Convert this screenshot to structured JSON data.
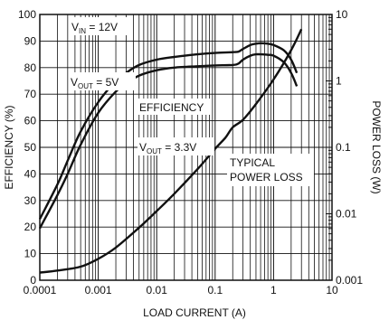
{
  "chart_data": {
    "type": "line",
    "xlabel": "LOAD CURRENT (A)",
    "ylabel": "EFFICIENCY (%)",
    "y2label": "POWER LOSS (W)",
    "x_scale": "log",
    "xlim": [
      0.0001,
      10
    ],
    "ylim": [
      0,
      100
    ],
    "y2_scale": "log",
    "y2lim": [
      0.001,
      10
    ],
    "grid": true,
    "x_ticks": [
      "0.0001",
      "0.001",
      "0.01",
      "0.1",
      "1",
      "10"
    ],
    "y_ticks": [
      "0",
      "10",
      "20",
      "30",
      "40",
      "50",
      "60",
      "70",
      "80",
      "90",
      "100"
    ],
    "y2_ticks": [
      "0.001",
      "0.01",
      "0.1",
      "1",
      "10"
    ],
    "annotations": {
      "vin": {
        "main": "V",
        "sub": "IN",
        "rest": " = 12V"
      },
      "vout5": {
        "main": "V",
        "sub": "OUT",
        "rest": " = 5V"
      },
      "vout33": {
        "main": "V",
        "sub": "OUT",
        "rest": " = 3.3V"
      },
      "efficiency": "EFFICIENCY",
      "loss_line1": "TYPICAL",
      "loss_line2": "POWER LOSS"
    },
    "series": [
      {
        "id": "eff5",
        "axis": "left",
        "x": [
          0.0001,
          0.0002,
          0.0003,
          0.0005,
          0.001,
          0.002,
          0.003,
          0.005,
          0.01,
          0.02,
          0.05,
          0.1,
          0.2,
          0.25,
          0.3,
          0.4,
          0.5,
          0.6,
          0.8,
          1,
          1.5,
          2,
          2.5
        ],
        "y": [
          23,
          36,
          45,
          56,
          67,
          75,
          78,
          81,
          83,
          84,
          85,
          85.5,
          85.8,
          86,
          87,
          88.5,
          89,
          89.2,
          89,
          88.5,
          86.5,
          83,
          78
        ]
      },
      {
        "id": "eff33",
        "axis": "left",
        "x": [
          0.0001,
          0.0002,
          0.0003,
          0.0005,
          0.001,
          0.002,
          0.003,
          0.005,
          0.01,
          0.02,
          0.05,
          0.1,
          0.2,
          0.25,
          0.3,
          0.4,
          0.5,
          0.6,
          0.8,
          1,
          1.5,
          2,
          2.5
        ],
        "y": [
          19.5,
          32,
          40,
          51,
          63,
          71,
          74,
          77,
          79,
          80,
          80.5,
          80.8,
          81,
          81.5,
          83,
          84.5,
          85,
          85,
          84.8,
          84.5,
          82,
          78,
          73
        ]
      },
      {
        "id": "loss",
        "axis": "right",
        "x": [
          0.0001,
          0.0002,
          0.0005,
          0.001,
          0.002,
          0.005,
          0.01,
          0.02,
          0.05,
          0.1,
          0.15,
          0.2,
          0.3,
          0.5,
          1,
          2,
          3
        ],
        "y": [
          0.0013,
          0.0014,
          0.0016,
          0.0021,
          0.0031,
          0.0062,
          0.011,
          0.02,
          0.047,
          0.095,
          0.14,
          0.2,
          0.26,
          0.45,
          1.05,
          2.9,
          6
        ]
      }
    ]
  }
}
